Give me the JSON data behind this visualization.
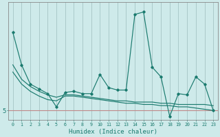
{
  "xlabel": "Humidex (Indice chaleur)",
  "x_values": [
    0,
    1,
    2,
    3,
    4,
    5,
    6,
    7,
    8,
    9,
    10,
    11,
    12,
    13,
    14,
    15,
    16,
    17,
    18,
    19,
    20,
    21,
    22,
    23
  ],
  "line1_y": [
    11.5,
    8.8,
    7.2,
    6.8,
    6.4,
    5.3,
    6.5,
    6.6,
    6.4,
    6.4,
    8.0,
    6.9,
    6.7,
    6.7,
    13.0,
    13.2,
    8.6,
    7.8,
    4.5,
    6.4,
    6.3,
    7.8,
    7.2,
    5.0
  ],
  "line2_y": [
    8.8,
    7.6,
    7.0,
    6.6,
    6.3,
    6.1,
    6.3,
    6.3,
    6.2,
    6.1,
    6.0,
    5.9,
    5.8,
    5.8,
    5.7,
    5.7,
    5.7,
    5.6,
    5.6,
    5.5,
    5.5,
    5.5,
    5.5,
    5.4
  ],
  "line3_y": [
    8.2,
    7.2,
    6.6,
    6.2,
    5.9,
    5.8,
    6.2,
    6.2,
    6.1,
    6.0,
    5.9,
    5.8,
    5.7,
    5.6,
    5.6,
    5.5,
    5.5,
    5.4,
    5.4,
    5.3,
    5.3,
    5.2,
    5.1,
    5.0
  ],
  "hline_y": 5.0,
  "line_color": "#1a7a6e",
  "background_color": "#ceeaea",
  "grid_color": "#aacaca",
  "hline_color": "#c08888",
  "ylabel_text": "5",
  "ylim": [
    4.2,
    14.0
  ],
  "xlim": [
    -0.5,
    23.5
  ],
  "yticks": [
    5.0
  ],
  "figsize": [
    3.2,
    2.0
  ],
  "dpi": 100
}
